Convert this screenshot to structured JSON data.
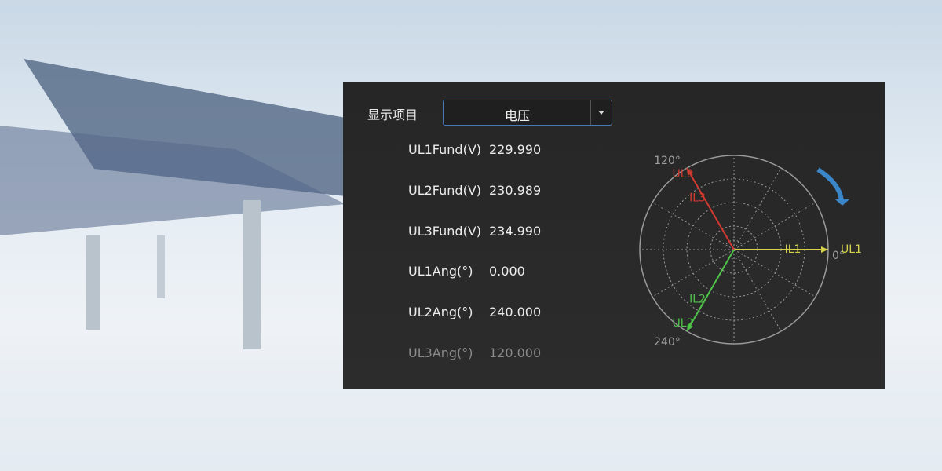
{
  "selector": {
    "label": "显示项目",
    "value": "电压"
  },
  "readings": [
    {
      "label": "UL1Fund(V)",
      "value": "229.990"
    },
    {
      "label": "UL2Fund(V)",
      "value": "230.989"
    },
    {
      "label": "UL3Fund(V)",
      "value": "234.990"
    },
    {
      "label": "UL1Ang(°)",
      "value": "0.000"
    },
    {
      "label": "UL2Ang(°)",
      "value": "240.000"
    },
    {
      "label": "UL3Ang(°)",
      "value": "120.000"
    }
  ],
  "phasor": {
    "angle_labels": [
      "120°",
      "240°",
      "0°"
    ],
    "vectors": [
      {
        "label": "UL1",
        "current_label": "IL1",
        "color": "#d6d24a"
      },
      {
        "label": "UL2",
        "current_label": "IL2",
        "color": "#4fc24a"
      },
      {
        "label": "UL3",
        "current_label": "IL3",
        "color": "#d03a30"
      }
    ]
  }
}
